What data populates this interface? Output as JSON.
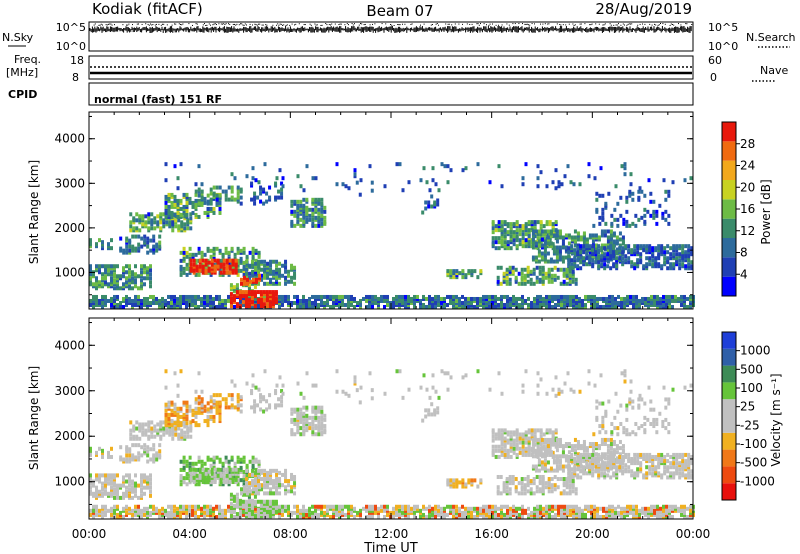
{
  "header": {
    "radar": "Kodiak (fitACF)",
    "beam": "Beam 07",
    "date": "28/Aug/2019"
  },
  "strip_labels": {
    "nsky": "N.Sky",
    "nsky_top": "10^5",
    "nsky_bottom": "10^0",
    "nsearch": "N.Search",
    "nsearch_top": "10^5",
    "nsearch_bottom": "10^0",
    "freq_line1": "Freq.",
    "freq_line2": "[MHz]",
    "freq_top": "18",
    "freq_bottom": "8",
    "nave": "Nave",
    "nave_top": "60",
    "nave_bottom": "0",
    "cpid": "CPID",
    "mode": "normal (fast) 151 RF"
  },
  "colors": {
    "power_scale": [
      "#0000ff",
      "#1f3fb4",
      "#2d6b9c",
      "#3a8b6a",
      "#6dbb45",
      "#c8d222",
      "#f2a81c",
      "#f06a10",
      "#e8180c"
    ],
    "velocity_scale": [
      "#1f3fd8",
      "#2f5fa8",
      "#3d8b56",
      "#66c43a",
      "#c0c0c0",
      "#c0c0c0",
      "#f0b020",
      "#f07818",
      "#ee4a10",
      "#e8100c"
    ]
  },
  "chart_data": [
    {
      "type": "heatmap",
      "panel": "power",
      "xlabel": "Time UT",
      "ylabel": "Slant Range [km]",
      "x_ticks": [
        "00:00",
        "04:00",
        "08:00",
        "12:00",
        "16:00",
        "20:00",
        "00:00"
      ],
      "x_range_hours": [
        0,
        24
      ],
      "y_ticks": [
        "1000",
        "2000",
        "3000",
        "4000"
      ],
      "y_range_km": [
        180,
        4600
      ],
      "colorbar_label": "Power [dB]",
      "colorbar_ticks": [
        "4",
        "8",
        "12",
        "16",
        "20",
        "24",
        "28"
      ],
      "colorbar_range": [
        0,
        32
      ]
    },
    {
      "type": "heatmap",
      "panel": "velocity",
      "xlabel": "Time UT",
      "ylabel": "Slant Range [km]",
      "x_ticks": [
        "00:00",
        "04:00",
        "08:00",
        "12:00",
        "16:00",
        "20:00",
        "00:00"
      ],
      "x_range_hours": [
        0,
        24
      ],
      "y_ticks": [
        "1000",
        "2000",
        "3000",
        "4000"
      ],
      "y_range_km": [
        180,
        4600
      ],
      "colorbar_label": "Velocity [m s⁻¹]",
      "colorbar_ticks": [
        "1000",
        "500",
        "100",
        "25",
        "-25",
        "-100",
        "-500",
        "-1000"
      ]
    }
  ],
  "axis": {
    "time_label": "Time UT"
  }
}
